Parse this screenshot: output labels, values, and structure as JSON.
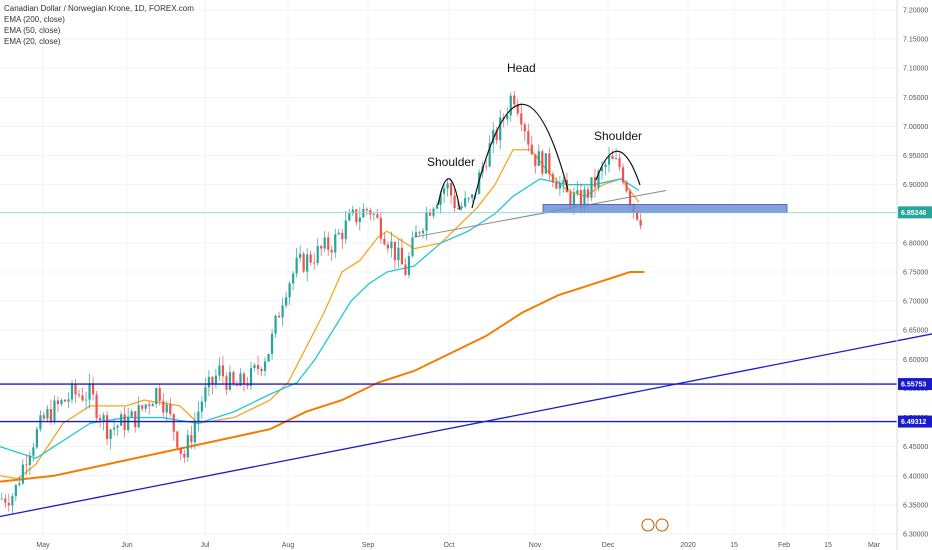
{
  "header": {
    "title": "Canadian Dollar / Norwegian Krone, 1D, FOREX.com",
    "indicators": [
      "EMA (200, close)",
      "EMA (50, close)",
      "EMA (20, close)"
    ]
  },
  "colors": {
    "candle_up": "#26a69a",
    "candle_down": "#ef5350",
    "ema20": "#f5a623",
    "ema50": "#26c6da",
    "ema200": "#f57c00",
    "support_line": "#1a1acc",
    "neckline_box": "#6f8fd8",
    "price_line": "#7fd6d0"
  },
  "chart_data": {
    "type": "candlestick",
    "title": "Canadian Dollar / Norwegian Krone, 1D, FOREX.com",
    "x_ticks": [
      "May",
      "Jun",
      "Jul",
      "Aug",
      "Sep",
      "Oct",
      "Nov",
      "Dec",
      "2020",
      "15",
      "Feb",
      "15",
      "Mar"
    ],
    "y_ticks": [
      "7.20000",
      "7.15000",
      "7.10000",
      "7.05000",
      "7.00000",
      "6.95000",
      "6.90000",
      "6.85000",
      "6.80000",
      "6.75000",
      "6.70000",
      "6.65000",
      "6.60000",
      "6.55000",
      "6.50000",
      "6.45000",
      "6.40000",
      "6.35000",
      "6.30000"
    ],
    "ylim": [
      6.28,
      7.22
    ],
    "current_price": "6.85246",
    "price_labels": [
      "6.85246",
      "6.55753",
      "6.49312"
    ],
    "horizontal_levels": [
      6.55753,
      6.49312
    ],
    "neckline_zone": [
      6.852,
      6.866
    ],
    "annotations": [
      "Head",
      "Shoulder",
      "Shoulder"
    ],
    "series": [
      {
        "name": "EMA (20, close)",
        "values": [
          [
            0,
            6.4
          ],
          [
            10,
            6.395
          ],
          [
            20,
            6.42
          ],
          [
            35,
            6.49
          ],
          [
            50,
            6.52
          ],
          [
            70,
            6.52
          ],
          [
            80,
            6.53
          ],
          [
            100,
            6.52
          ],
          [
            110,
            6.49
          ],
          [
            130,
            6.5
          ],
          [
            150,
            6.53
          ],
          [
            160,
            6.56
          ],
          [
            170,
            6.62
          ],
          [
            180,
            6.68
          ],
          [
            190,
            6.75
          ],
          [
            200,
            6.77
          ],
          [
            210,
            6.81
          ],
          [
            215,
            6.82
          ],
          [
            230,
            6.79
          ],
          [
            245,
            6.8
          ],
          [
            255,
            6.83
          ],
          [
            265,
            6.86
          ],
          [
            275,
            6.9
          ],
          [
            285,
            6.96
          ],
          [
            295,
            6.96
          ],
          [
            305,
            6.92
          ],
          [
            315,
            6.89
          ],
          [
            325,
            6.88
          ],
          [
            335,
            6.9
          ],
          [
            345,
            6.91
          ],
          [
            355,
            6.87
          ]
        ]
      },
      {
        "name": "EMA (50, close)",
        "values": [
          [
            0,
            6.45
          ],
          [
            10,
            6.44
          ],
          [
            20,
            6.43
          ],
          [
            35,
            6.46
          ],
          [
            50,
            6.49
          ],
          [
            70,
            6.5
          ],
          [
            90,
            6.5
          ],
          [
            110,
            6.49
          ],
          [
            130,
            6.51
          ],
          [
            150,
            6.54
          ],
          [
            165,
            6.56
          ],
          [
            175,
            6.6
          ],
          [
            185,
            6.65
          ],
          [
            195,
            6.7
          ],
          [
            205,
            6.73
          ],
          [
            215,
            6.75
          ],
          [
            230,
            6.76
          ],
          [
            245,
            6.8
          ],
          [
            260,
            6.82
          ],
          [
            275,
            6.85
          ],
          [
            285,
            6.88
          ],
          [
            300,
            6.91
          ],
          [
            315,
            6.9
          ],
          [
            330,
            6.9
          ],
          [
            345,
            6.91
          ],
          [
            355,
            6.89
          ]
        ]
      },
      {
        "name": "EMA (200, close)",
        "values": [
          [
            0,
            6.39
          ],
          [
            30,
            6.4
          ],
          [
            60,
            6.42
          ],
          [
            90,
            6.44
          ],
          [
            120,
            6.46
          ],
          [
            150,
            6.48
          ],
          [
            170,
            6.51
          ],
          [
            190,
            6.53
          ],
          [
            210,
            6.56
          ],
          [
            230,
            6.58
          ],
          [
            250,
            6.61
          ],
          [
            270,
            6.64
          ],
          [
            290,
            6.68
          ],
          [
            310,
            6.71
          ],
          [
            330,
            6.73
          ],
          [
            350,
            6.75
          ],
          [
            358,
            6.75
          ]
        ]
      }
    ],
    "trendline": [
      [
        0,
        6.33
      ],
      [
        520,
        6.645
      ]
    ],
    "neckline": [
      [
        230,
        6.81
      ],
      [
        370,
        6.89
      ]
    ]
  }
}
